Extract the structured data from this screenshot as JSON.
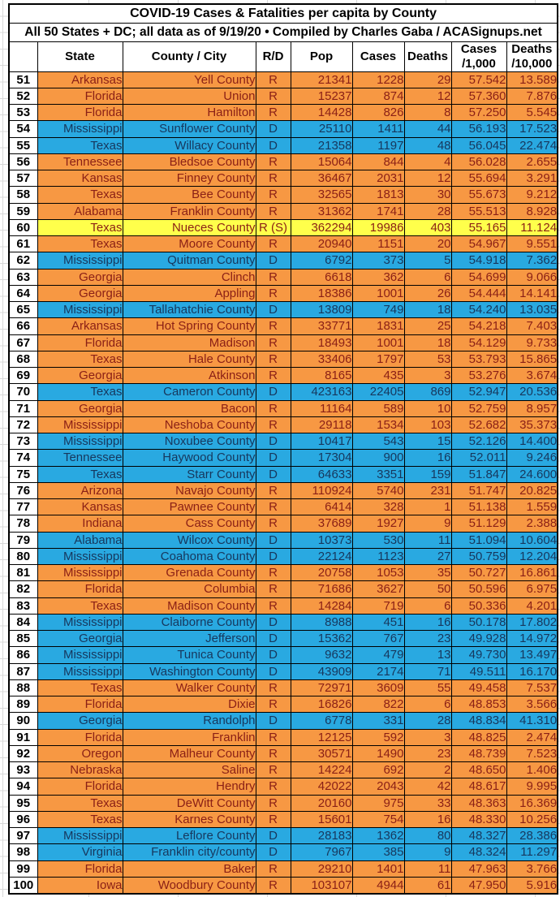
{
  "title": "COVID-19 Cases & Fatalities per capita by County",
  "subtitle": "All 50 States + DC; all data as of 9/19/20  • Compiled by Charles Gaba / ACASignups.net",
  "columns": [
    {
      "label": "",
      "label2": ""
    },
    {
      "label": "State",
      "label2": ""
    },
    {
      "label": "County / City",
      "label2": ""
    },
    {
      "label": "R/D",
      "label2": ""
    },
    {
      "label": "Pop",
      "label2": ""
    },
    {
      "label": "Cases",
      "label2": ""
    },
    {
      "label": "Deaths",
      "label2": ""
    },
    {
      "label": "Cases",
      "label2": "/1,000"
    },
    {
      "label": "Deaths",
      "label2": "/10,000"
    }
  ],
  "colors": {
    "republican_fill": "#F79843",
    "democrat_fill": "#29A9E1",
    "special_fill": "#FFFF4B",
    "republican_text": "#8B2016",
    "democrat_text": "#17375D",
    "grid_line": "#D8D8D8",
    "table_border": "#000000"
  },
  "row_fields": [
    "rank",
    "state",
    "county",
    "party",
    "pop",
    "cases",
    "deaths",
    "cases_per_1000",
    "deaths_per_10000",
    "fill"
  ],
  "rows": [
    [
      51,
      "Arkansas",
      "Yell County",
      "R",
      "21341",
      "1228",
      "29",
      "57.542",
      "13.589",
      "R"
    ],
    [
      52,
      "Florida",
      "Union",
      "R",
      "15237",
      "874",
      "12",
      "57.360",
      "7.876",
      "R"
    ],
    [
      53,
      "Florida",
      "Hamilton",
      "R",
      "14428",
      "826",
      "8",
      "57.250",
      "5.545",
      "R"
    ],
    [
      54,
      "Mississippi",
      "Sunflower County",
      "D",
      "25110",
      "1411",
      "44",
      "56.193",
      "17.523",
      "D"
    ],
    [
      55,
      "Texas",
      "Willacy County",
      "D",
      "21358",
      "1197",
      "48",
      "56.045",
      "22.474",
      "D"
    ],
    [
      56,
      "Tennessee",
      "Bledsoe County",
      "R",
      "15064",
      "844",
      "4",
      "56.028",
      "2.655",
      "R"
    ],
    [
      57,
      "Kansas",
      "Finney County",
      "R",
      "36467",
      "2031",
      "12",
      "55.694",
      "3.291",
      "R"
    ],
    [
      58,
      "Texas",
      "Bee County",
      "R",
      "32565",
      "1813",
      "30",
      "55.673",
      "9.212",
      "R"
    ],
    [
      59,
      "Alabama",
      "Franklin County",
      "R",
      "31362",
      "1741",
      "28",
      "55.513",
      "8.928",
      "R"
    ],
    [
      60,
      "Texas",
      "Nueces County",
      "R (S)",
      "362294",
      "19986",
      "403",
      "55.165",
      "11.124",
      "S"
    ],
    [
      61,
      "Texas",
      "Moore County",
      "R",
      "20940",
      "1151",
      "20",
      "54.967",
      "9.551",
      "R"
    ],
    [
      62,
      "Mississippi",
      "Quitman County",
      "D",
      "6792",
      "373",
      "5",
      "54.918",
      "7.362",
      "D"
    ],
    [
      63,
      "Georgia",
      "Clinch",
      "R",
      "6618",
      "362",
      "6",
      "54.699",
      "9.066",
      "R"
    ],
    [
      64,
      "Georgia",
      "Appling",
      "R",
      "18386",
      "1001",
      "26",
      "54.444",
      "14.141",
      "R"
    ],
    [
      65,
      "Mississippi",
      "Tallahatchie County",
      "D",
      "13809",
      "749",
      "18",
      "54.240",
      "13.035",
      "D"
    ],
    [
      66,
      "Arkansas",
      "Hot Spring County",
      "R",
      "33771",
      "1831",
      "25",
      "54.218",
      "7.403",
      "R"
    ],
    [
      67,
      "Florida",
      "Madison",
      "R",
      "18493",
      "1001",
      "18",
      "54.129",
      "9.733",
      "R"
    ],
    [
      68,
      "Texas",
      "Hale County",
      "R",
      "33406",
      "1797",
      "53",
      "53.793",
      "15.865",
      "R"
    ],
    [
      69,
      "Georgia",
      "Atkinson",
      "R",
      "8165",
      "435",
      "3",
      "53.276",
      "3.674",
      "R"
    ],
    [
      70,
      "Texas",
      "Cameron County",
      "D",
      "423163",
      "22405",
      "869",
      "52.947",
      "20.536",
      "D"
    ],
    [
      71,
      "Georgia",
      "Bacon",
      "R",
      "11164",
      "589",
      "10",
      "52.759",
      "8.957",
      "R"
    ],
    [
      72,
      "Mississippi",
      "Neshoba County",
      "R",
      "29118",
      "1534",
      "103",
      "52.682",
      "35.373",
      "R"
    ],
    [
      73,
      "Mississippi",
      "Noxubee County",
      "D",
      "10417",
      "543",
      "15",
      "52.126",
      "14.400",
      "D"
    ],
    [
      74,
      "Tennessee",
      "Haywood County",
      "D",
      "17304",
      "900",
      "16",
      "52.011",
      "9.246",
      "D"
    ],
    [
      75,
      "Texas",
      "Starr County",
      "D",
      "64633",
      "3351",
      "159",
      "51.847",
      "24.600",
      "D"
    ],
    [
      76,
      "Arizona",
      "Navajo County",
      "R",
      "110924",
      "5740",
      "231",
      "51.747",
      "20.825",
      "R"
    ],
    [
      77,
      "Kansas",
      "Pawnee County",
      "R",
      "6414",
      "328",
      "1",
      "51.138",
      "1.559",
      "R"
    ],
    [
      78,
      "Indiana",
      "Cass County",
      "R",
      "37689",
      "1927",
      "9",
      "51.129",
      "2.388",
      "R"
    ],
    [
      79,
      "Alabama",
      "Wilcox County",
      "D",
      "10373",
      "530",
      "11",
      "51.094",
      "10.604",
      "D"
    ],
    [
      80,
      "Mississippi",
      "Coahoma County",
      "D",
      "22124",
      "1123",
      "27",
      "50.759",
      "12.204",
      "D"
    ],
    [
      81,
      "Mississippi",
      "Grenada County",
      "R",
      "20758",
      "1053",
      "35",
      "50.727",
      "16.861",
      "R"
    ],
    [
      82,
      "Florida",
      "Columbia",
      "R",
      "71686",
      "3627",
      "50",
      "50.596",
      "6.975",
      "R"
    ],
    [
      83,
      "Texas",
      "Madison County",
      "R",
      "14284",
      "719",
      "6",
      "50.336",
      "4.201",
      "R"
    ],
    [
      84,
      "Mississippi",
      "Claiborne County",
      "D",
      "8988",
      "451",
      "16",
      "50.178",
      "17.802",
      "D"
    ],
    [
      85,
      "Georgia",
      "Jefferson",
      "D",
      "15362",
      "767",
      "23",
      "49.928",
      "14.972",
      "D"
    ],
    [
      86,
      "Mississippi",
      "Tunica County",
      "D",
      "9632",
      "479",
      "13",
      "49.730",
      "13.497",
      "D"
    ],
    [
      87,
      "Mississippi",
      "Washington County",
      "D",
      "43909",
      "2174",
      "71",
      "49.511",
      "16.170",
      "D"
    ],
    [
      88,
      "Texas",
      "Walker County",
      "R",
      "72971",
      "3609",
      "55",
      "49.458",
      "7.537",
      "R"
    ],
    [
      89,
      "Florida",
      "Dixie",
      "R",
      "16826",
      "822",
      "6",
      "48.853",
      "3.566",
      "R"
    ],
    [
      90,
      "Georgia",
      "Randolph",
      "D",
      "6778",
      "331",
      "28",
      "48.834",
      "41.310",
      "D"
    ],
    [
      91,
      "Florida",
      "Franklin",
      "R",
      "12125",
      "592",
      "3",
      "48.825",
      "2.474",
      "R"
    ],
    [
      92,
      "Oregon",
      "Malheur County",
      "R",
      "30571",
      "1490",
      "23",
      "48.739",
      "7.523",
      "R"
    ],
    [
      93,
      "Nebraska",
      "Saline",
      "R",
      "14224",
      "692",
      "2",
      "48.650",
      "1.406",
      "R"
    ],
    [
      94,
      "Florida",
      "Hendry",
      "R",
      "42022",
      "2043",
      "42",
      "48.617",
      "9.995",
      "R"
    ],
    [
      95,
      "Texas",
      "DeWitt County",
      "R",
      "20160",
      "975",
      "33",
      "48.363",
      "16.369",
      "R"
    ],
    [
      96,
      "Texas",
      "Karnes County",
      "R",
      "15601",
      "754",
      "16",
      "48.330",
      "10.256",
      "R"
    ],
    [
      97,
      "Mississippi",
      "Leflore County",
      "D",
      "28183",
      "1362",
      "80",
      "48.327",
      "28.386",
      "D"
    ],
    [
      98,
      "Virginia",
      "Franklin city/county",
      "D",
      "7967",
      "385",
      "9",
      "48.324",
      "11.297",
      "D"
    ],
    [
      99,
      "Florida",
      "Baker",
      "R",
      "29210",
      "1401",
      "11",
      "47.963",
      "3.766",
      "R"
    ],
    [
      100,
      "Iowa",
      "Woodbury County",
      "R",
      "103107",
      "4944",
      "61",
      "47.950",
      "5.916",
      "R"
    ]
  ]
}
